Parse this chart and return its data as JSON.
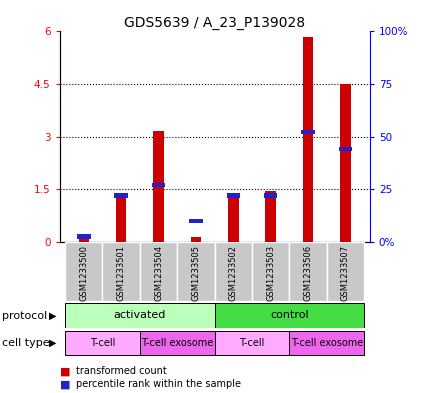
{
  "title": "GDS5639 / A_23_P139028",
  "samples": [
    "GSM1233500",
    "GSM1233501",
    "GSM1233504",
    "GSM1233505",
    "GSM1233502",
    "GSM1233503",
    "GSM1233506",
    "GSM1233507"
  ],
  "red_values": [
    0.12,
    1.38,
    3.15,
    0.12,
    1.38,
    1.45,
    5.85,
    4.5
  ],
  "blue_values_pct": [
    2.5,
    22,
    27,
    10,
    22,
    22,
    52,
    44
  ],
  "ylim_left": [
    0,
    6
  ],
  "ylim_right": [
    0,
    100
  ],
  "yticks_left": [
    0,
    1.5,
    3.0,
    4.5,
    6.0
  ],
  "ytick_labels_left": [
    "0",
    "1.5",
    "3",
    "4.5",
    "6"
  ],
  "yticks_right": [
    0,
    25,
    50,
    75,
    100
  ],
  "ytick_labels_right": [
    "0%",
    "25",
    "50",
    "75",
    "100%"
  ],
  "grid_yticks": [
    1.5,
    3.0,
    4.5
  ],
  "protocol_groups": [
    {
      "label": "activated",
      "start": 0,
      "end": 4,
      "color": "#bbffbb"
    },
    {
      "label": "control",
      "start": 4,
      "end": 8,
      "color": "#44dd44"
    }
  ],
  "cell_type_groups": [
    {
      "label": "T-cell",
      "start": 0,
      "end": 2,
      "color": "#ffaaff"
    },
    {
      "label": "T-cell exosome",
      "start": 2,
      "end": 4,
      "color": "#ee66ee"
    },
    {
      "label": "T-cell",
      "start": 4,
      "end": 6,
      "color": "#ffaaff"
    },
    {
      "label": "T-cell exosome",
      "start": 6,
      "end": 8,
      "color": "#ee66ee"
    }
  ],
  "red_color": "#cc0000",
  "blue_color": "#2222cc",
  "bar_bg_color": "#c8c8c8",
  "legend_red": "transformed count",
  "legend_blue": "percentile rank within the sample",
  "label_protocol": "protocol",
  "label_cell_type": "cell type",
  "title_fontsize": 10,
  "tick_fontsize": 7.5,
  "label_fontsize": 8
}
